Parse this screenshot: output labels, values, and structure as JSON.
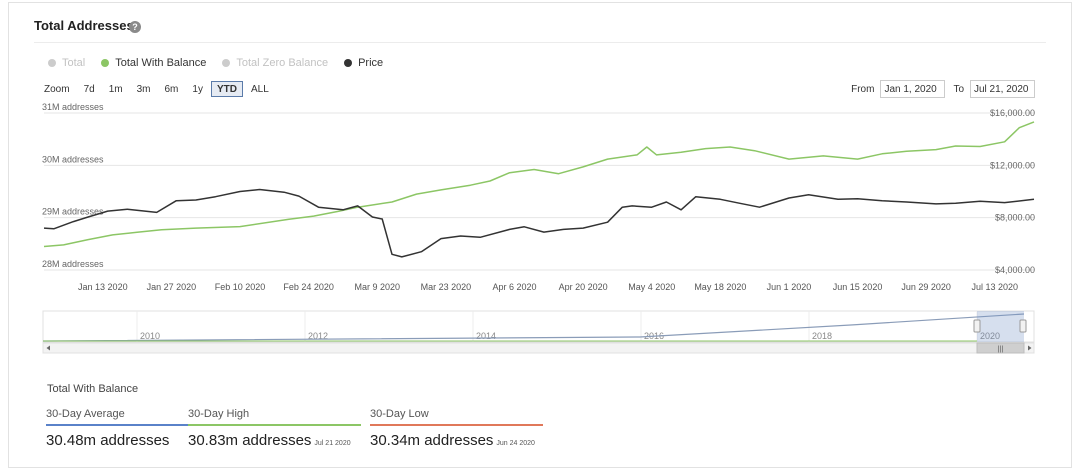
{
  "header": {
    "title": "Total Addresses",
    "help_icon": "question-circle-icon"
  },
  "legend": [
    {
      "label": "Total",
      "color": "#cccccc",
      "muted": true
    },
    {
      "label": "Total With Balance",
      "color": "#8cc665",
      "muted": false
    },
    {
      "label": "Total Zero Balance",
      "color": "#cccccc",
      "muted": true
    },
    {
      "label": "Price",
      "color": "#333333",
      "muted": false
    }
  ],
  "zoom": {
    "label": "Zoom",
    "options": [
      "7d",
      "1m",
      "3m",
      "6m",
      "1y",
      "YTD",
      "ALL"
    ],
    "active": "YTD"
  },
  "range": {
    "from_label": "From",
    "from_value": "Jan 1, 2020",
    "to_label": "To",
    "to_value": "Jul 21, 2020"
  },
  "chart_data": {
    "type": "line",
    "x_range": [
      "2020-01-01",
      "2020-07-21"
    ],
    "x_ticks": [
      "Jan 13 2020",
      "Jan 27 2020",
      "Feb 10 2020",
      "Feb 24 2020",
      "Mar 9 2020",
      "Mar 23 2020",
      "Apr 6 2020",
      "Apr 20 2020",
      "May 4 2020",
      "May 18 2020",
      "Jun 1 2020",
      "Jun 15 2020",
      "Jun 29 2020",
      "Jul 13 2020"
    ],
    "y_left": {
      "ticks": [
        "28M addresses",
        "29M addresses",
        "30M addresses",
        "31M addresses"
      ],
      "range": [
        28,
        31
      ],
      "unit": "M addresses"
    },
    "y_right": {
      "ticks": [
        "$4,000.00",
        "$8,000.00",
        "$12,000.00",
        "$16,000.00"
      ],
      "range": [
        4000,
        16000
      ],
      "unit": "USD"
    },
    "grid": true,
    "series": [
      {
        "name": "Total With Balance",
        "axis": "left",
        "color": "#8cc665",
        "x": [
          "2020-01-01",
          "2020-01-05",
          "2020-01-10",
          "2020-01-15",
          "2020-01-20",
          "2020-01-25",
          "2020-02-01",
          "2020-02-10",
          "2020-02-20",
          "2020-02-25",
          "2020-03-01",
          "2020-03-05",
          "2020-03-12",
          "2020-03-17",
          "2020-03-22",
          "2020-03-28",
          "2020-04-01",
          "2020-04-05",
          "2020-04-10",
          "2020-04-15",
          "2020-04-20",
          "2020-04-25",
          "2020-05-01",
          "2020-05-03",
          "2020-05-05",
          "2020-05-10",
          "2020-05-15",
          "2020-05-20",
          "2020-05-25",
          "2020-06-01",
          "2020-06-08",
          "2020-06-15",
          "2020-06-20",
          "2020-06-25",
          "2020-07-01",
          "2020-07-05",
          "2020-07-10",
          "2020-07-15",
          "2020-07-18",
          "2020-07-21"
        ],
        "values": [
          28.45,
          28.48,
          28.58,
          28.67,
          28.72,
          28.77,
          28.8,
          28.83,
          28.97,
          29.03,
          29.12,
          29.2,
          29.3,
          29.45,
          29.53,
          29.62,
          29.7,
          29.86,
          29.92,
          29.84,
          29.97,
          30.12,
          30.2,
          30.35,
          30.2,
          30.25,
          30.32,
          30.35,
          30.28,
          30.12,
          30.18,
          30.12,
          30.22,
          30.27,
          30.3,
          30.37,
          30.36,
          30.45,
          30.72,
          30.83
        ]
      },
      {
        "name": "Price",
        "axis": "right",
        "color": "#333333",
        "x": [
          "2020-01-01",
          "2020-01-03",
          "2020-01-07",
          "2020-01-10",
          "2020-01-14",
          "2020-01-18",
          "2020-01-24",
          "2020-01-28",
          "2020-02-01",
          "2020-02-05",
          "2020-02-10",
          "2020-02-14",
          "2020-02-19",
          "2020-02-22",
          "2020-02-26",
          "2020-03-02",
          "2020-03-05",
          "2020-03-08",
          "2020-03-10",
          "2020-03-12",
          "2020-03-14",
          "2020-03-18",
          "2020-03-22",
          "2020-03-26",
          "2020-03-30",
          "2020-04-05",
          "2020-04-08",
          "2020-04-12",
          "2020-04-16",
          "2020-04-20",
          "2020-04-25",
          "2020-04-28",
          "2020-04-30",
          "2020-05-04",
          "2020-05-07",
          "2020-05-10",
          "2020-05-13",
          "2020-05-18",
          "2020-05-22",
          "2020-05-26",
          "2020-06-01",
          "2020-06-05",
          "2020-06-11",
          "2020-06-15",
          "2020-06-20",
          "2020-06-25",
          "2020-07-01",
          "2020-07-05",
          "2020-07-10",
          "2020-07-15",
          "2020-07-21"
        ],
        "values": [
          7200,
          7150,
          7700,
          8050,
          8500,
          8650,
          8400,
          9300,
          9350,
          9600,
          10000,
          10150,
          9950,
          9650,
          8800,
          8600,
          8900,
          8050,
          7900,
          5200,
          5000,
          5400,
          6400,
          6600,
          6500,
          7100,
          7300,
          6900,
          7100,
          7200,
          7650,
          8800,
          8900,
          8800,
          9200,
          8600,
          9600,
          9400,
          9100,
          8800,
          9500,
          9750,
          9400,
          9450,
          9300,
          9200,
          9050,
          9100,
          9250,
          9150,
          9400
        ]
      }
    ]
  },
  "navigator": {
    "years": [
      "2010",
      "2012",
      "2014",
      "2016",
      "2018",
      "2020"
    ],
    "scroll_left_icon": "arrow-left-icon",
    "scroll_right_icon": "arrow-right-icon",
    "grip_icon": "grip-icon"
  },
  "stats": {
    "title": "Total With Balance",
    "items": [
      {
        "label": "30-Day Average",
        "value": "30.48m addresses",
        "date": "",
        "color": "#5a82c9"
      },
      {
        "label": "30-Day High",
        "value": "30.83m addresses",
        "date": "Jul 21 2020",
        "color": "#8cc665"
      },
      {
        "label": "30-Day Low",
        "value": "30.34m addresses",
        "date": "Jun 24 2020",
        "color": "#e0785a"
      }
    ]
  }
}
